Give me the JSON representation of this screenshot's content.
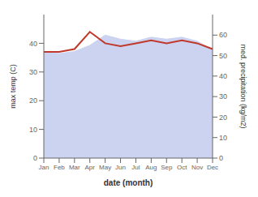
{
  "chart_data": {
    "type": "line",
    "xlabel": "date (month)",
    "ylabel": "max temp (C)",
    "y2label": "med. precipitation (kg/m2)",
    "categories": [
      "Jan",
      "Feb",
      "Mar",
      "Apr",
      "May",
      "Jun",
      "Jul",
      "Aug",
      "Sep",
      "Oct",
      "Nov",
      "Dec"
    ],
    "ylim": [
      0,
      50
    ],
    "yticks": [
      0,
      10,
      20,
      30,
      40
    ],
    "y2lim": [
      0,
      70
    ],
    "y2ticks": [
      0,
      10,
      20,
      30,
      40,
      50,
      60
    ],
    "grid": false,
    "series": [
      {
        "type": "area",
        "axis": "y2",
        "color": "#ccd3f0",
        "values": [
          52,
          51,
          52,
          55,
          60,
          58,
          57,
          59,
          58,
          59,
          57,
          53
        ]
      },
      {
        "type": "line",
        "axis": "y",
        "color": "#c0392b",
        "values": [
          37,
          37,
          38,
          44,
          40,
          39,
          40,
          41,
          40,
          41,
          40,
          38
        ]
      }
    ]
  }
}
